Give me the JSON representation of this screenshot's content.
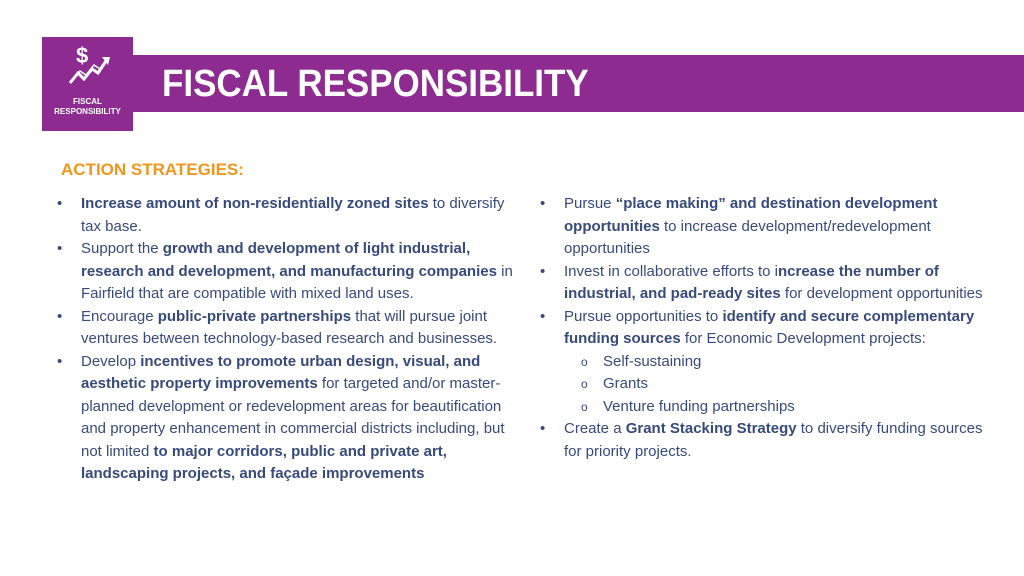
{
  "header": {
    "title": "FISCAL RESPONSIBILITY",
    "badge_label": "FISCAL RESPONSIBILITY",
    "badge_icon": "dollar-growth-arrow-icon",
    "brand_color": "#8e2b91"
  },
  "section_title": "ACTION STRATEGIES:",
  "accent_color": "#f0961c",
  "text_color": "#374a7c",
  "left_column": [
    {
      "segments": [
        {
          "text": "Increase amount of non-residentially  zoned sites",
          "bold": true
        },
        {
          "text": " to diversify tax base.",
          "bold": false
        }
      ]
    },
    {
      "segments": [
        {
          "text": "Support the ",
          "bold": false
        },
        {
          "text": "growth and development of light industrial, research and development, and manufacturing companies",
          "bold": true
        },
        {
          "text": " in Fairfield that are compatible with mixed land uses.",
          "bold": false
        }
      ]
    },
    {
      "segments": [
        {
          "text": "Encourage ",
          "bold": false
        },
        {
          "text": "public-private partnerships",
          "bold": true
        },
        {
          "text": " that will pursue joint ventures between technology-based research and businesses.",
          "bold": false
        }
      ]
    },
    {
      "segments": [
        {
          "text": "Develop ",
          "bold": false
        },
        {
          "text": "incentives to promote urban design, visual, and aesthetic property improvements",
          "bold": true
        },
        {
          "text": " for targeted and/or master-planned development or redevelopment areas for beautification and property enhancement in commercial districts including, but not limited ",
          "bold": false
        },
        {
          "text": "to major corridors, public and private art, landscaping projects, and façade improvements",
          "bold": true
        }
      ]
    }
  ],
  "right_column": [
    {
      "segments": [
        {
          "text": "Pursue ",
          "bold": false
        },
        {
          "text": "“place making” and destination development opportunities",
          "bold": true
        },
        {
          "text": " to increase development/redevelopment opportunities",
          "bold": false
        }
      ]
    },
    {
      "segments": [
        {
          "text": "Invest in collaborative efforts to i",
          "bold": false
        },
        {
          "text": "ncrease the number of industrial, and pad-ready sites",
          "bold": true
        },
        {
          "text": " for development opportunities",
          "bold": false
        }
      ]
    },
    {
      "segments": [
        {
          "text": "Pursue opportunities to ",
          "bold": false
        },
        {
          "text": "identify and secure complementary funding sources",
          "bold": true
        },
        {
          "text": " for Economic Development projects:",
          "bold": false
        }
      ],
      "sub_items": [
        "Self-sustaining",
        "Grants",
        "Venture funding partnerships"
      ]
    },
    {
      "segments": [
        {
          "text": "Create a ",
          "bold": false
        },
        {
          "text": "Grant Stacking Strategy",
          "bold": true
        },
        {
          "text": " to diversify funding sources for priority projects.",
          "bold": false
        }
      ]
    }
  ]
}
